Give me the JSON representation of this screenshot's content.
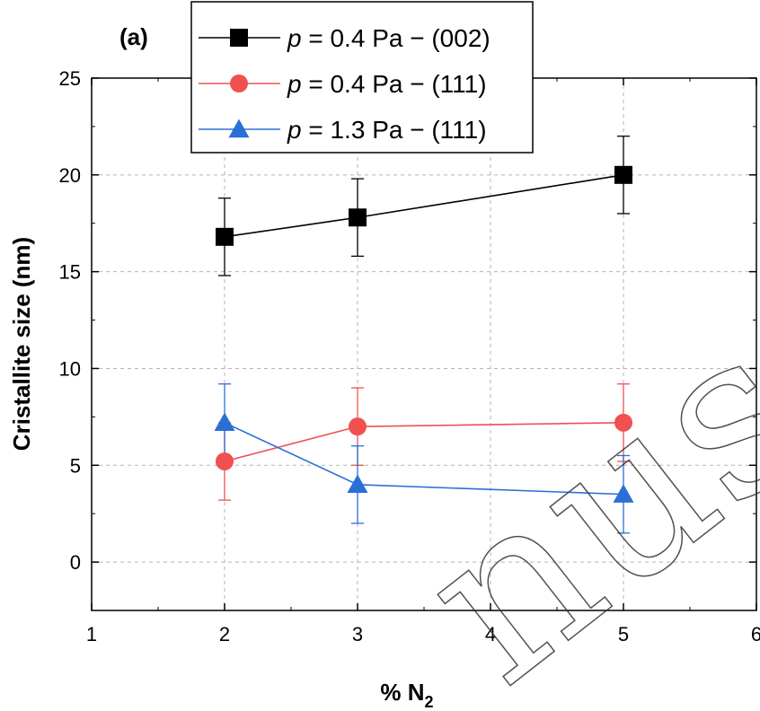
{
  "chart_data": {
    "type": "line",
    "panel_label": "(a)",
    "xlabel": "% N",
    "xlabel_subscript": "2",
    "ylabel": "Cristallite size (nm)",
    "xlim": [
      1,
      6
    ],
    "ylim": [
      -2.5,
      25
    ],
    "xticks": [
      1,
      2,
      3,
      4,
      5,
      6
    ],
    "yticks": [
      0,
      5,
      10,
      15,
      20,
      25
    ],
    "grid": true,
    "legend_position": "top-center",
    "series": [
      {
        "legend_var": "p",
        "legend_rest": " = 0.4 Pa − (002)",
        "color": "#000000",
        "marker": "square",
        "x": [
          2,
          3,
          5
        ],
        "y": [
          16.8,
          17.8,
          20.0
        ],
        "err": [
          2.0,
          2.0,
          2.0
        ]
      },
      {
        "legend_var": "p",
        "legend_rest": " = 0.4 Pa − (111)",
        "color": "#f05050",
        "marker": "circle",
        "x": [
          2,
          3,
          5
        ],
        "y": [
          5.2,
          7.0,
          7.2
        ],
        "err": [
          2.0,
          2.0,
          2.0
        ]
      },
      {
        "legend_var": "p",
        "legend_rest": " = 1.3 Pa − (111)",
        "color": "#2b6fd6",
        "marker": "triangle",
        "x": [
          2,
          3,
          5
        ],
        "y": [
          7.2,
          4.0,
          3.5
        ],
        "err": [
          2.0,
          2.0,
          2.0
        ]
      }
    ]
  },
  "watermark": {
    "text": "nusc"
  }
}
